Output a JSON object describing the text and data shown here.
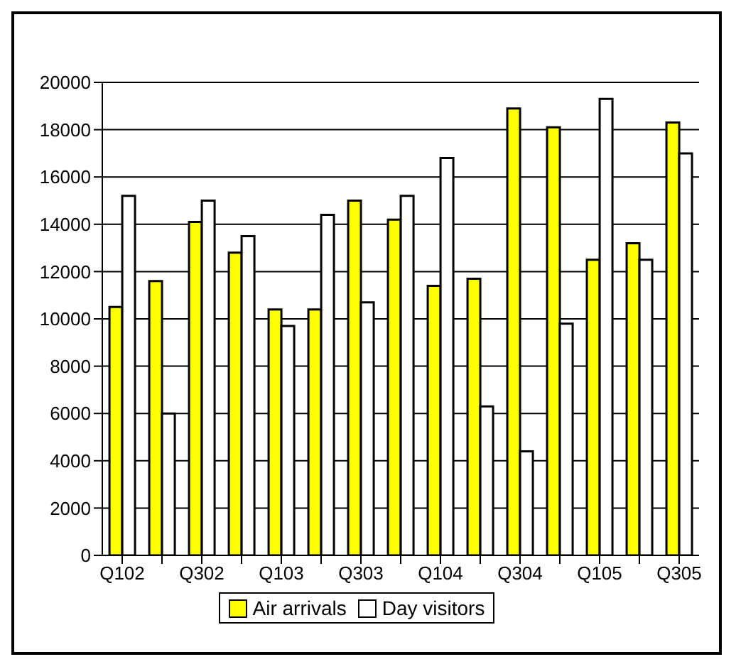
{
  "chart_data": {
    "type": "bar",
    "categories": [
      "Q102",
      null,
      "Q302",
      null,
      "Q103",
      null,
      "Q303",
      null,
      "Q104",
      null,
      "Q304",
      null,
      "Q105",
      null,
      "Q305"
    ],
    "series": [
      {
        "name": "Air arrivals",
        "color": "#ffff00",
        "values": [
          10500,
          11600,
          14100,
          12800,
          10400,
          10400,
          15000,
          14200,
          11400,
          11700,
          18900,
          18100,
          12500,
          13200,
          18300
        ]
      },
      {
        "name": "Day visitors",
        "color": "#ffffff",
        "values": [
          15200,
          6000,
          15000,
          13500,
          9700,
          14400,
          10700,
          15200,
          16800,
          6300,
          4400,
          9800,
          19300,
          12500,
          17000
        ]
      }
    ],
    "ylim": [
      0,
      20000
    ],
    "yticks": [
      0,
      2000,
      4000,
      6000,
      8000,
      10000,
      12000,
      14000,
      16000,
      18000,
      20000
    ],
    "grid": "y",
    "legend": "bottom"
  }
}
